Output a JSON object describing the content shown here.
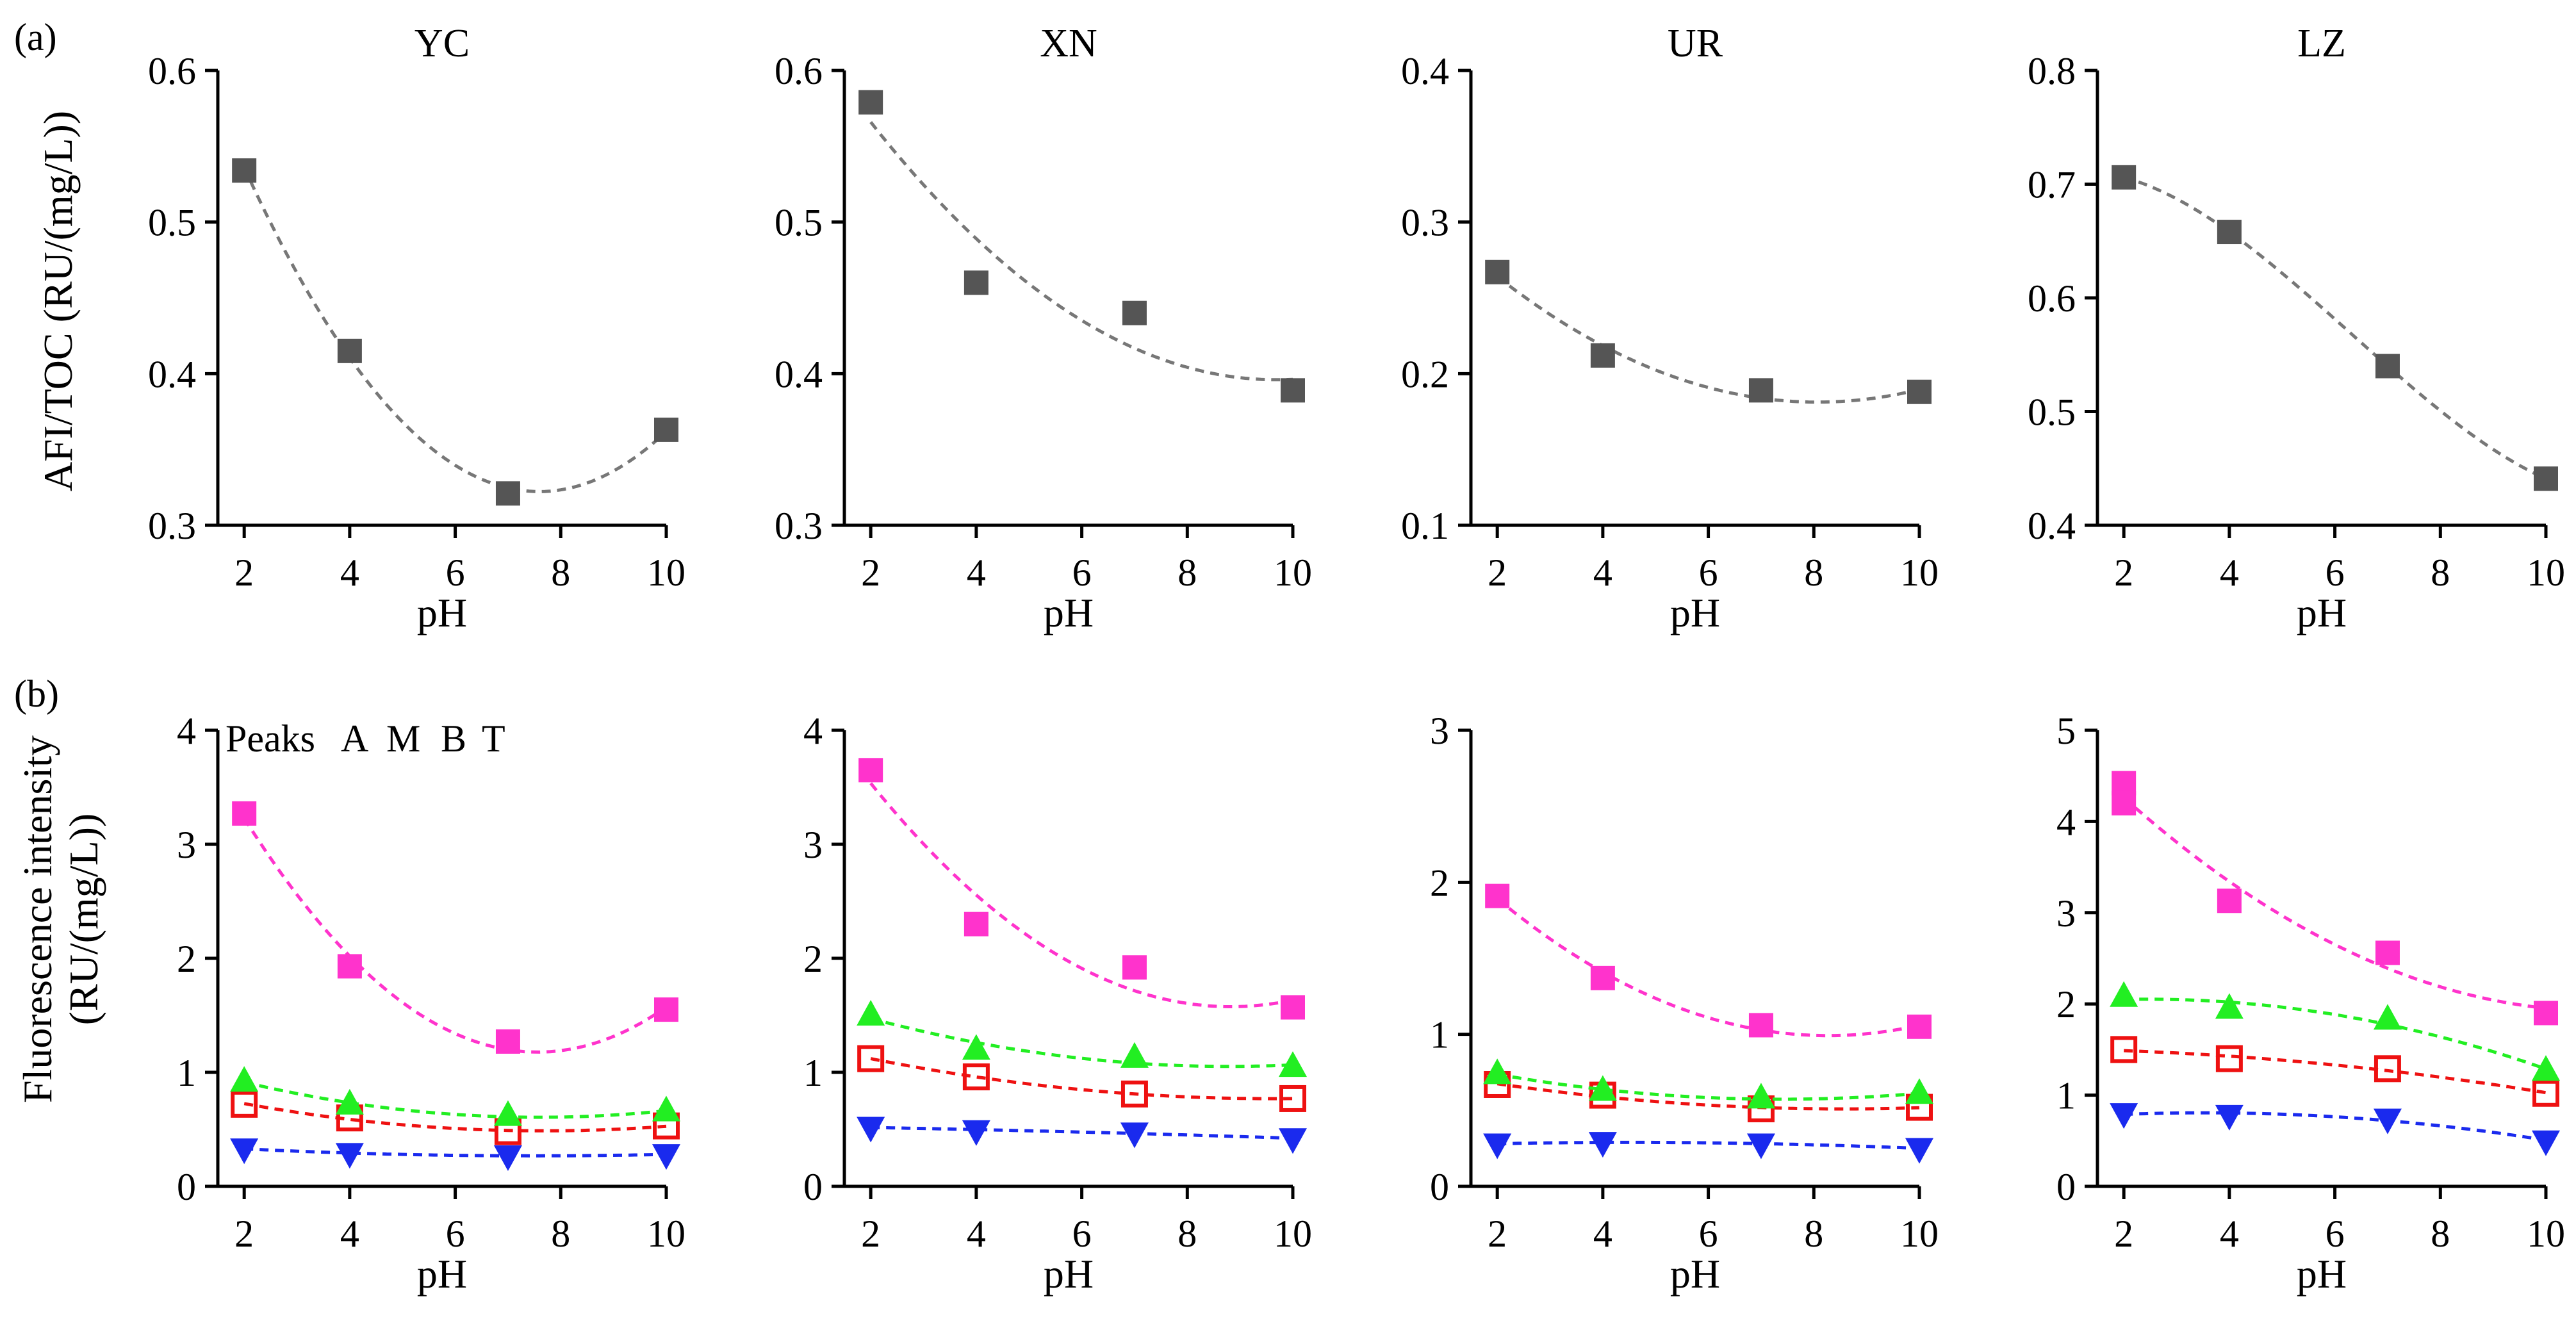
{
  "figure": {
    "row_labels": [
      "(a)",
      "(b)"
    ],
    "ylabel_top": "AFI/TOC (RU/(mg/L))",
    "ylabel_bottom_line1": "Fluorescence intensity",
    "ylabel_bottom_line2": "(RU/(mg/L))",
    "legend": {
      "prefix": "Peaks",
      "items": [
        {
          "label": "A",
          "color": "#ff33cc"
        },
        {
          "label": "M",
          "color": "#ee1111"
        },
        {
          "label": "B",
          "color": "#1a2aee"
        },
        {
          "label": "T",
          "color": "#22ee22"
        }
      ]
    }
  },
  "chart_data": [
    {
      "type": "scatter",
      "row": 0,
      "col": 0,
      "title": "YC",
      "xlabel": "pH",
      "ylabel": "AFI/TOC (RU/(mg/L))",
      "xlim": [
        1.5,
        10
      ],
      "ylim": [
        0.3,
        0.6
      ],
      "xticks": [
        2,
        4,
        6,
        8,
        10
      ],
      "xtick_labels": [
        "2",
        "4",
        "6",
        "8",
        "10"
      ],
      "yticks": [
        0.3,
        0.4,
        0.5,
        0.6
      ],
      "ytick_labels": [
        "0.3",
        "0.4",
        "0.5",
        "0.6"
      ],
      "series": [
        {
          "marker": "square",
          "color": "#555555",
          "x": [
            2,
            4,
            7,
            10
          ],
          "y": [
            0.534,
            0.415,
            0.321,
            0.363
          ]
        }
      ]
    },
    {
      "type": "scatter",
      "row": 0,
      "col": 1,
      "title": "XN",
      "xlabel": "pH",
      "xlim": [
        1.5,
        10
      ],
      "ylim": [
        0.3,
        0.6
      ],
      "xticks": [
        2,
        4,
        6,
        8,
        10
      ],
      "xtick_labels": [
        "2",
        "4",
        "6",
        "8",
        "10"
      ],
      "yticks": [
        0.3,
        0.4,
        0.5,
        0.6
      ],
      "ytick_labels": [
        "0.3",
        "0.4",
        "0.5",
        "0.6"
      ],
      "series": [
        {
          "marker": "square",
          "color": "#555555",
          "x": [
            2,
            4,
            7,
            10
          ],
          "y": [
            0.579,
            0.46,
            0.44,
            0.389
          ]
        }
      ]
    },
    {
      "type": "scatter",
      "row": 0,
      "col": 2,
      "title": "UR",
      "xlabel": "pH",
      "xlim": [
        1.5,
        10
      ],
      "ylim": [
        0.1,
        0.4
      ],
      "xticks": [
        2,
        4,
        6,
        8,
        10
      ],
      "xtick_labels": [
        "2",
        "4",
        "6",
        "8",
        "10"
      ],
      "yticks": [
        0.1,
        0.2,
        0.3,
        0.4
      ],
      "ytick_labels": [
        "0.1",
        "0.2",
        "0.3",
        "0.4"
      ],
      "series": [
        {
          "marker": "square",
          "color": "#555555",
          "x": [
            2,
            4,
            7,
            10
          ],
          "y": [
            0.267,
            0.212,
            0.189,
            0.188
          ]
        }
      ]
    },
    {
      "type": "scatter",
      "row": 0,
      "col": 3,
      "title": "LZ",
      "xlabel": "pH",
      "xlim": [
        1.5,
        10
      ],
      "ylim": [
        0.4,
        0.8
      ],
      "xticks": [
        2,
        4,
        6,
        8,
        10
      ],
      "xtick_labels": [
        "2",
        "4",
        "6",
        "8",
        "10"
      ],
      "yticks": [
        0.4,
        0.5,
        0.6,
        0.7,
        0.8
      ],
      "ytick_labels": [
        "0.4",
        "0.5",
        "0.6",
        "0.7",
        "0.8"
      ],
      "series": [
        {
          "marker": "square",
          "color": "#555555",
          "x": [
            2,
            4,
            7,
            10
          ],
          "y": [
            0.706,
            0.658,
            0.54,
            0.441
          ]
        }
      ]
    },
    {
      "type": "scatter",
      "row": 1,
      "col": 0,
      "title": "",
      "xlabel": "pH",
      "ylabel": "Fluorescence intensity (RU/(mg/L))",
      "xlim": [
        1.5,
        10
      ],
      "ylim": [
        0,
        4
      ],
      "xticks": [
        2,
        4,
        6,
        8,
        10
      ],
      "xtick_labels": [
        "2",
        "4",
        "6",
        "8",
        "10"
      ],
      "yticks": [
        0,
        1,
        2,
        3,
        4
      ],
      "ytick_labels": [
        "0",
        "1",
        "2",
        "3",
        "4"
      ],
      "series": [
        {
          "name": "A",
          "marker": "square",
          "color": "#ff33cc",
          "x": [
            2,
            4,
            7,
            10
          ],
          "y": [
            3.27,
            1.93,
            1.27,
            1.55
          ]
        },
        {
          "name": "M",
          "marker": "open-square",
          "color": "#ee1111",
          "x": [
            2,
            4,
            7,
            10
          ],
          "y": [
            0.72,
            0.6,
            0.48,
            0.53
          ]
        },
        {
          "name": "B",
          "marker": "triangle-down",
          "color": "#1a2aee",
          "x": [
            2,
            4,
            7,
            10
          ],
          "y": [
            0.33,
            0.29,
            0.27,
            0.28
          ]
        },
        {
          "name": "T",
          "marker": "triangle-up",
          "color": "#22ee22",
          "x": [
            2,
            4,
            7,
            10
          ],
          "y": [
            0.92,
            0.72,
            0.62,
            0.66
          ]
        }
      ]
    },
    {
      "type": "scatter",
      "row": 1,
      "col": 1,
      "title": "",
      "xlabel": "pH",
      "xlim": [
        1.5,
        10
      ],
      "ylim": [
        0,
        4
      ],
      "xticks": [
        2,
        4,
        6,
        8,
        10
      ],
      "xtick_labels": [
        "2",
        "4",
        "6",
        "8",
        "10"
      ],
      "yticks": [
        0,
        1,
        2,
        3,
        4
      ],
      "ytick_labels": [
        "0",
        "1",
        "2",
        "3",
        "4"
      ],
      "series": [
        {
          "name": "A",
          "marker": "square",
          "color": "#ff33cc",
          "x": [
            2,
            4,
            7,
            10
          ],
          "y": [
            3.65,
            2.3,
            1.92,
            1.57
          ]
        },
        {
          "name": "M",
          "marker": "open-square",
          "color": "#ee1111",
          "x": [
            2,
            4,
            7,
            10
          ],
          "y": [
            1.12,
            0.96,
            0.81,
            0.77
          ]
        },
        {
          "name": "B",
          "marker": "triangle-down",
          "color": "#1a2aee",
          "x": [
            2,
            4,
            7,
            10
          ],
          "y": [
            0.52,
            0.49,
            0.47,
            0.42
          ]
        },
        {
          "name": "T",
          "marker": "triangle-up",
          "color": "#22ee22",
          "x": [
            2,
            4,
            7,
            10
          ],
          "y": [
            1.5,
            1.2,
            1.13,
            1.05
          ]
        }
      ]
    },
    {
      "type": "scatter",
      "row": 1,
      "col": 2,
      "title": "",
      "xlabel": "pH",
      "xlim": [
        1.5,
        10
      ],
      "ylim": [
        0,
        3
      ],
      "xticks": [
        2,
        4,
        6,
        8,
        10
      ],
      "xtick_labels": [
        "2",
        "4",
        "6",
        "8",
        "10"
      ],
      "yticks": [
        0,
        1,
        2,
        3
      ],
      "ytick_labels": [
        "0",
        "1",
        "2",
        "3"
      ],
      "series": [
        {
          "name": "A",
          "marker": "square",
          "color": "#ff33cc",
          "x": [
            2,
            4,
            7,
            10
          ],
          "y": [
            1.91,
            1.37,
            1.06,
            1.05
          ]
        },
        {
          "name": "M",
          "marker": "open-square",
          "color": "#ee1111",
          "x": [
            2,
            4,
            7,
            10
          ],
          "y": [
            0.67,
            0.6,
            0.51,
            0.52
          ]
        },
        {
          "name": "B",
          "marker": "triangle-down",
          "color": "#1a2aee",
          "x": [
            2,
            4,
            7,
            10
          ],
          "y": [
            0.28,
            0.29,
            0.28,
            0.25
          ]
        },
        {
          "name": "T",
          "marker": "triangle-up",
          "color": "#22ee22",
          "x": [
            2,
            4,
            7,
            10
          ],
          "y": [
            0.74,
            0.63,
            0.58,
            0.61
          ]
        }
      ]
    },
    {
      "type": "scatter",
      "row": 1,
      "col": 3,
      "title": "",
      "xlabel": "pH",
      "xlim": [
        1.5,
        10
      ],
      "ylim": [
        0,
        5
      ],
      "xticks": [
        2,
        4,
        6,
        8,
        10
      ],
      "xtick_labels": [
        "2",
        "4",
        "6",
        "8",
        "10"
      ],
      "yticks": [
        0,
        1,
        2,
        3,
        4,
        5
      ],
      "ytick_labels": [
        "0",
        "1",
        "2",
        "3",
        "4",
        "5"
      ],
      "series": [
        {
          "name": "A",
          "marker": "square",
          "color": "#ff33cc",
          "x": [
            2,
            2,
            4,
            7,
            10
          ],
          "y": [
            4.42,
            4.2,
            3.13,
            2.56,
            1.9
          ]
        },
        {
          "name": "M",
          "marker": "open-square",
          "color": "#ee1111",
          "x": [
            2,
            4,
            7,
            10
          ],
          "y": [
            1.5,
            1.4,
            1.29,
            1.02
          ]
        },
        {
          "name": "B",
          "marker": "triangle-down",
          "color": "#1a2aee",
          "x": [
            2,
            4,
            7,
            10
          ],
          "y": [
            0.8,
            0.78,
            0.74,
            0.5
          ]
        },
        {
          "name": "T",
          "marker": "triangle-up",
          "color": "#22ee22",
          "x": [
            2,
            4,
            7,
            10
          ],
          "y": [
            2.08,
            1.95,
            1.83,
            1.27
          ]
        }
      ]
    }
  ]
}
